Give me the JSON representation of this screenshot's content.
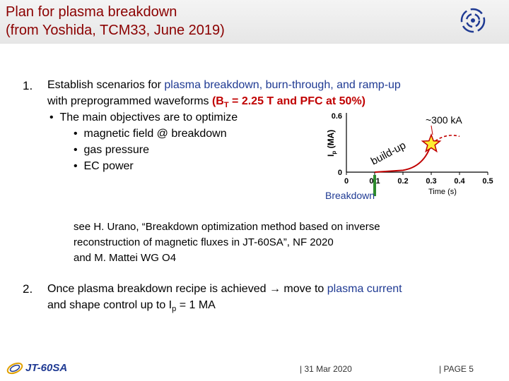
{
  "title": {
    "line1": "Plan for plasma breakdown",
    "line2": "(from Yoshida, TCM33, June 2019)"
  },
  "item1": {
    "number": "1.",
    "intro_black": "Establish scenarios for ",
    "intro_blue": "plasma breakdown, burn-through, and ramp-up",
    "line2_black": "with preprogrammed waveforms ",
    "line2_red_pre": "(B",
    "line2_red_sub": "T",
    "line2_red_post": " = 2.25 T and PFC at 50%)",
    "objectives_label": "The main objectives are to optimize",
    "bullets": [
      "magnetic field @ breakdown",
      "gas pressure",
      "EC power"
    ]
  },
  "reference": {
    "line1": "see H. Urano, “Breakdown optimization method based on inverse",
    "line2": "reconstruction of magnetic fluxes in JT-60SA”, NF 2020",
    "line3": "and M. Mattei WG O4"
  },
  "item2": {
    "number": "2.",
    "line1_black": "Once plasma breakdown recipe is achieved ",
    "arrow": "→",
    "line1_tail_black": " move to ",
    "line1_blue": "plasma current",
    "line2_pre": "and shape control up to I",
    "line2_sub": "p",
    "line2_post": " = 1 MA"
  },
  "chart_data": {
    "type": "line",
    "xlabel": "Time (s)",
    "ylabel_main": "I",
    "ylabel_sub": "p",
    "ylabel_unit": "(MA)",
    "x_ticks": [
      "0",
      "0.1",
      "0.2",
      "0.3",
      "0.4",
      "0.5"
    ],
    "y_ticks": [
      "0",
      "0.6"
    ],
    "xlim": [
      0,
      0.5
    ],
    "ylim": [
      0,
      0.6
    ],
    "annotation_peak": "~300 kA",
    "annotation_ramp": "build-up",
    "annotation_breakdown": "Breakdown",
    "series": [
      {
        "x": [
          0.1,
          0.2,
          0.3
        ],
        "y": [
          0,
          0.02,
          0.3
        ]
      }
    ],
    "dashed_continuation": {
      "x": [
        0.3,
        0.4
      ],
      "y": [
        0.3,
        0.38
      ]
    },
    "colors": {
      "curve": "#c00000",
      "star_fill": "#ffee33",
      "breakdown_marker": "#2e8b2e",
      "breakdown_text": "#1f3a93"
    }
  },
  "footer": {
    "logo_text": "JT-60SA",
    "date": "| 31 Mar 2020",
    "page": "| PAGE 5"
  }
}
